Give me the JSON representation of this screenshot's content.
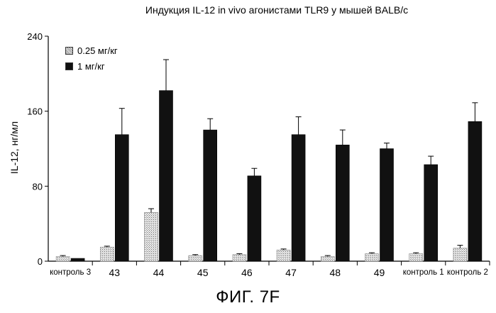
{
  "figure_caption": "ФИГ. 7F",
  "legend": {
    "items": [
      {
        "label": "0.25  мг/кг",
        "color": "#cfcfcf"
      },
      {
        "label": "1  мг/кг",
        "color": "#111111"
      }
    ]
  },
  "chart_data": {
    "type": "bar",
    "title": "Индукция IL-12 in vivo агонистами TLR9 у мышей BALB/c",
    "xlabel": "",
    "ylabel": "IL-12, нг/мл",
    "ylim": [
      0,
      240
    ],
    "yticks": [
      0,
      80,
      160,
      240
    ],
    "grid": false,
    "legend_position": "top-left",
    "categories": [
      "контроль 3",
      "43",
      "44",
      "45",
      "46",
      "47",
      "48",
      "49",
      "контроль 1",
      "контроль 2"
    ],
    "series": [
      {
        "name": "0.25  мг/кг",
        "color": "#cfcfcf",
        "values": [
          5,
          15,
          52,
          6,
          7,
          12,
          5,
          8,
          8,
          14
        ],
        "errors": [
          1,
          1,
          4,
          1,
          1,
          1,
          1,
          1,
          1,
          3
        ]
      },
      {
        "name": "1  мг/кг",
        "color": "#111111",
        "values": [
          3,
          135,
          182,
          140,
          91,
          135,
          124,
          120,
          103,
          149
        ],
        "errors": [
          0,
          28,
          33,
          12,
          8,
          19,
          16,
          6,
          9,
          20
        ]
      }
    ]
  }
}
